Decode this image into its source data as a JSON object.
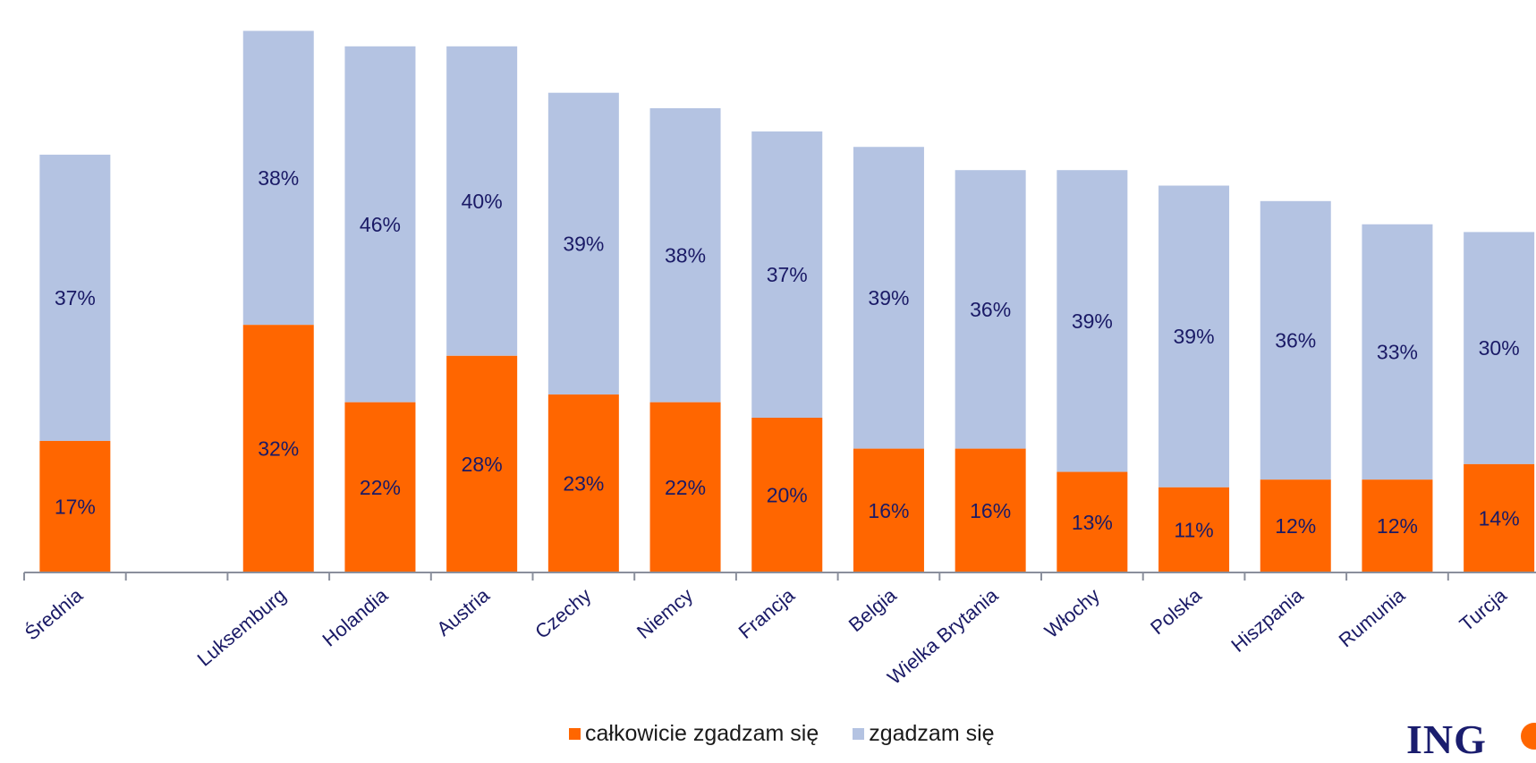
{
  "chart_data": {
    "type": "bar",
    "stacked": true,
    "categories": [
      "Średnia",
      "",
      "Luksemburg",
      "Holandia",
      "Austria",
      "Czechy",
      "Niemcy",
      "Francja",
      "Belgia",
      "Wielka Brytania",
      "Włochy",
      "Polska",
      "Hiszpania",
      "Rumunia",
      "Turcja"
    ],
    "series": [
      {
        "name": "całkowicie zgadzam się",
        "color": "#ff6600",
        "values": [
          17,
          null,
          32,
          22,
          28,
          23,
          22,
          20,
          16,
          16,
          13,
          11,
          12,
          12,
          14
        ],
        "labels": [
          "17%",
          "",
          "32%",
          "22%",
          "28%",
          "23%",
          "22%",
          "20%",
          "16%",
          "16%",
          "13%",
          "11%",
          "12%",
          "12%",
          "14%"
        ]
      },
      {
        "name": "zgadzam się",
        "color": "#b4c3e2",
        "values": [
          37,
          null,
          38,
          46,
          40,
          39,
          38,
          37,
          39,
          36,
          39,
          39,
          36,
          33,
          30
        ],
        "labels": [
          "37%",
          "",
          "38%",
          "46%",
          "40%",
          "39%",
          "38%",
          "37%",
          "39%",
          "36%",
          "39%",
          "39%",
          "36%",
          "33%",
          "30%"
        ]
      }
    ],
    "ylim": [
      0,
      72
    ],
    "grid": false,
    "legend_position": "bottom"
  },
  "logo": {
    "text": "ING"
  }
}
